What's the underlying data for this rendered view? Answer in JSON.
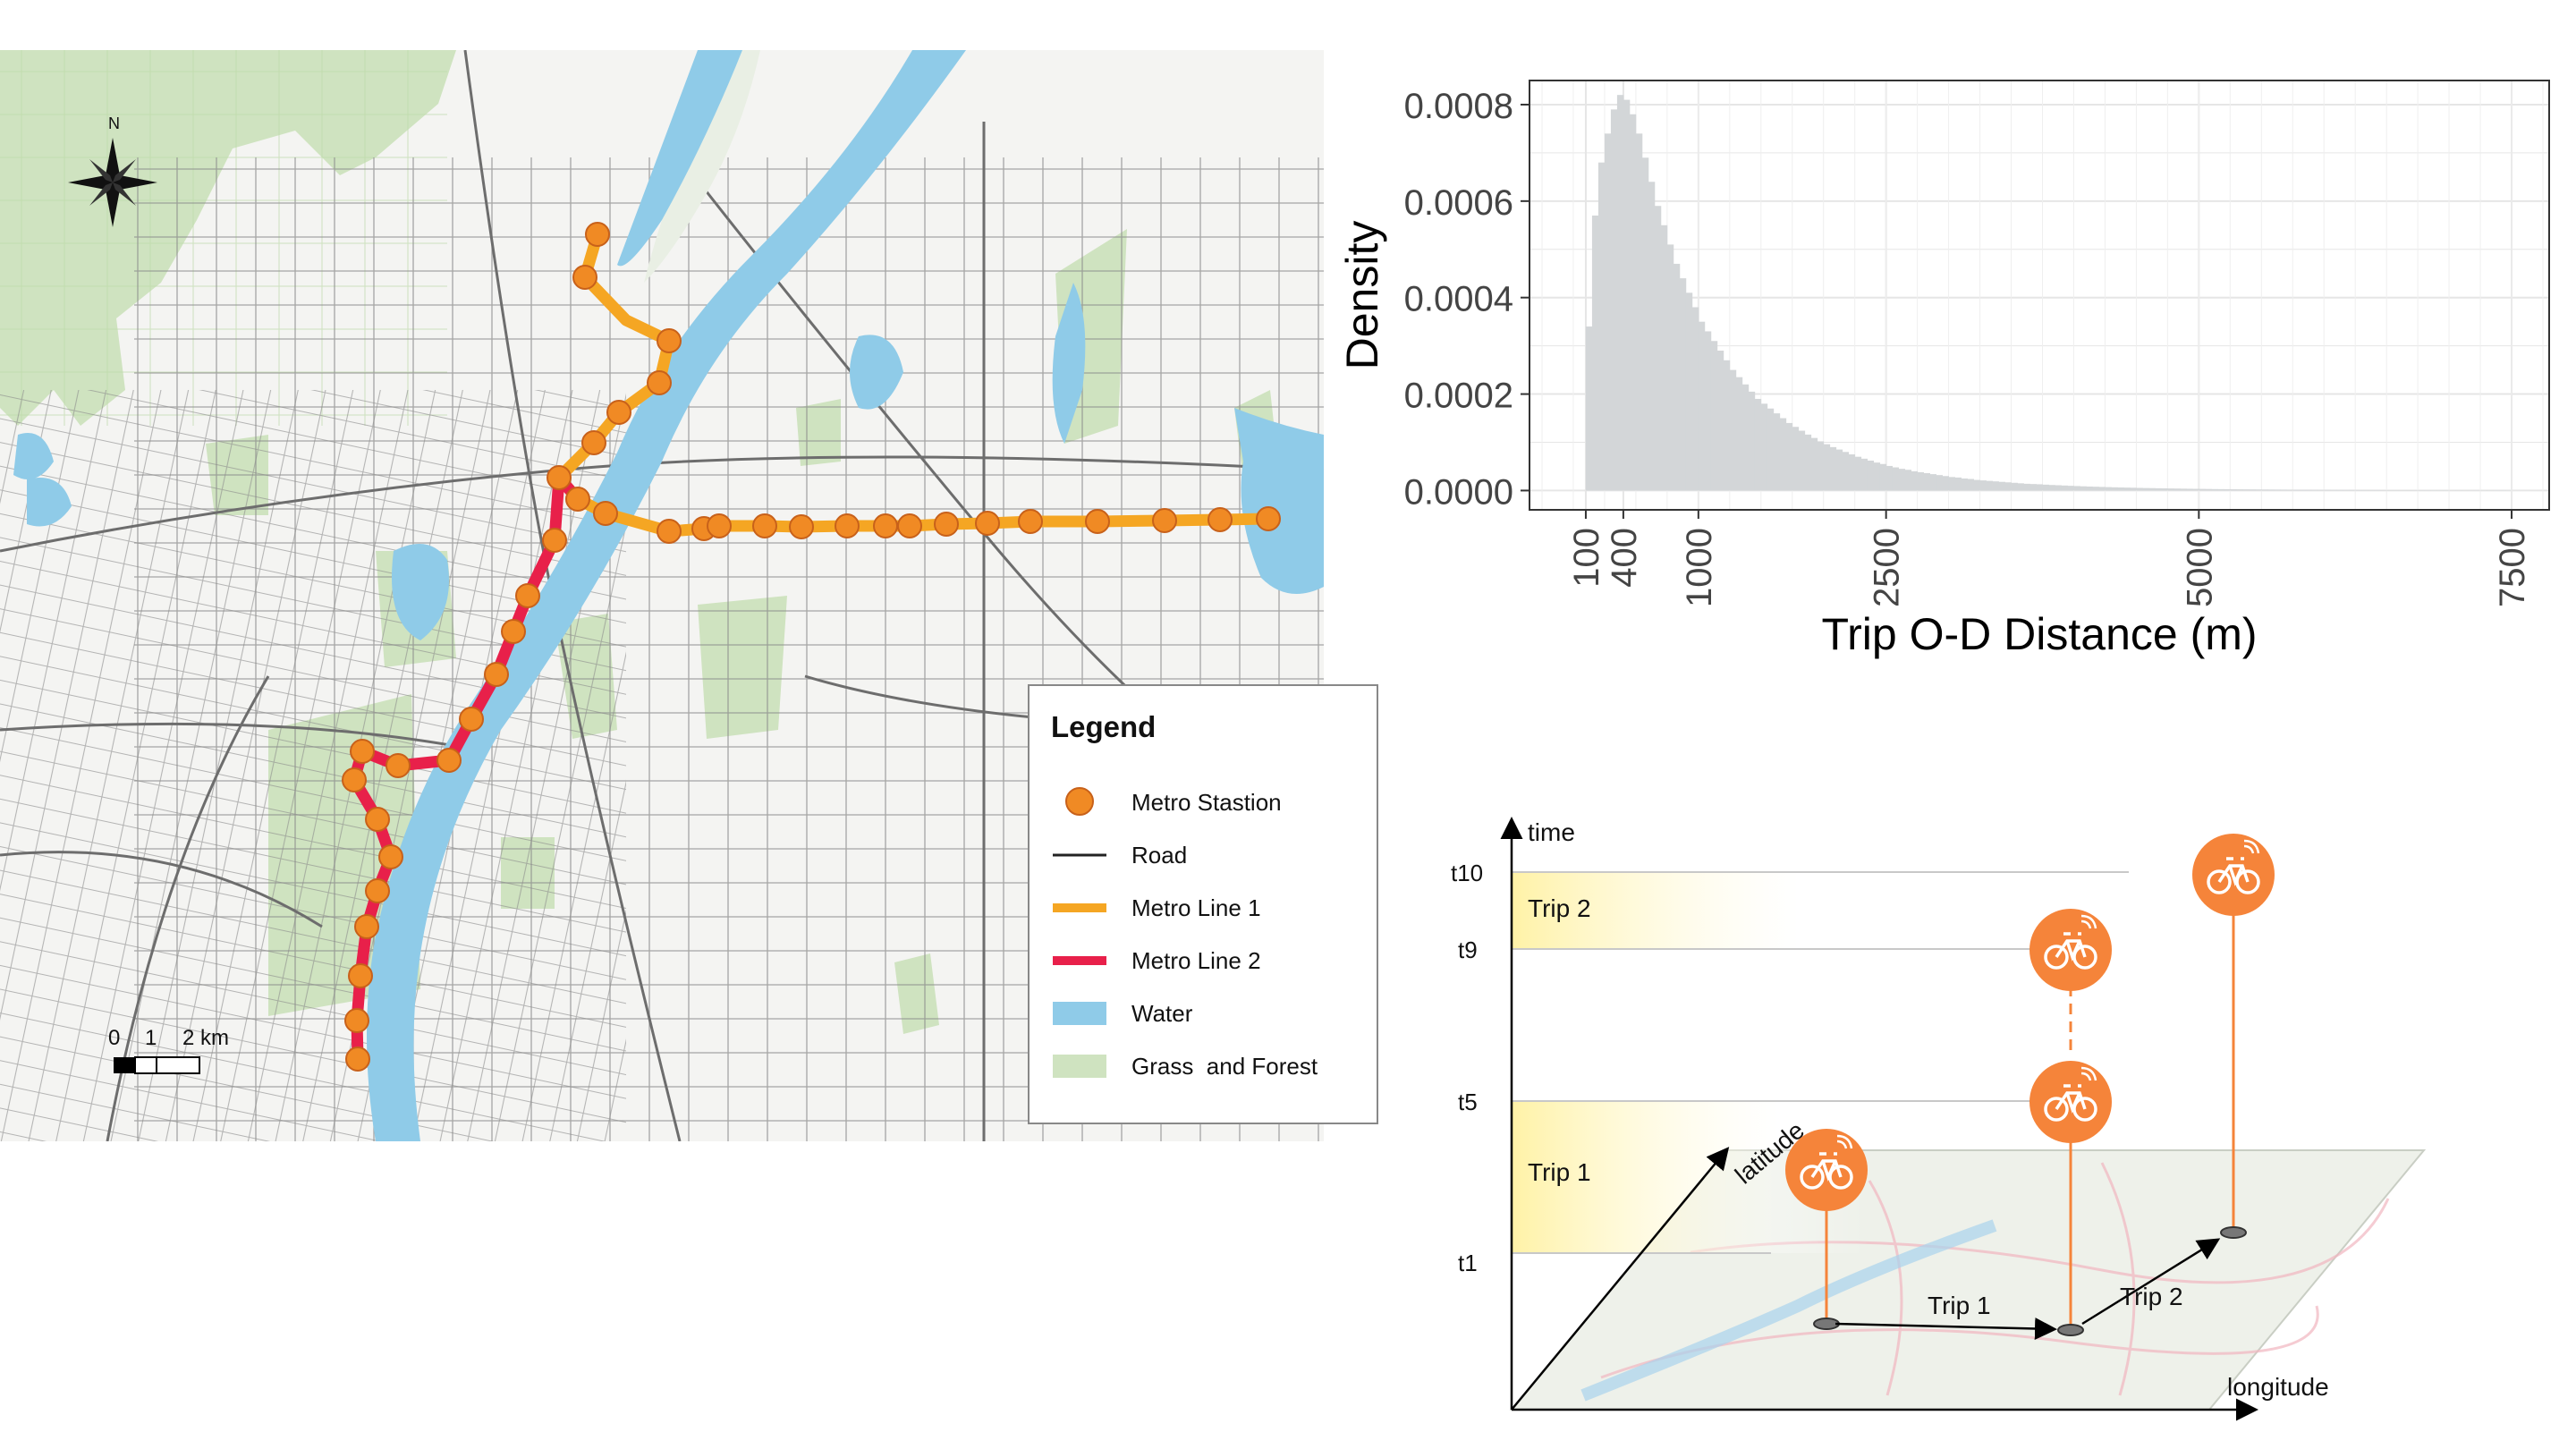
{
  "map": {
    "north_label": "N",
    "scale": {
      "labels": [
        "0",
        "1",
        "2 km"
      ]
    },
    "legend": {
      "title": "Legend",
      "items": [
        {
          "label": "Metro Stastion",
          "kind": "circle",
          "color": "#f08a24"
        },
        {
          "label": "Road",
          "kind": "line",
          "color": "#222222"
        },
        {
          "label": "Metro Line 1",
          "kind": "thick-line",
          "color": "#f5a623"
        },
        {
          "label": "Metro Line 2",
          "kind": "thick-line",
          "color": "#e8204a"
        },
        {
          "label": "Water",
          "kind": "box",
          "color": "#8fcbe8"
        },
        {
          "label": "Grass  and Forest",
          "kind": "box",
          "color": "#cfe3c0"
        }
      ]
    },
    "colors": {
      "water": "#8fcbe8",
      "grass": "#cfe3c0",
      "road": "#7a7a7a",
      "line1": "#f5a623",
      "line2": "#e8204a",
      "station": "#f08a24"
    }
  },
  "chart_data": {
    "type": "histogram",
    "xlabel": "Trip O-D Distance (m)",
    "ylabel": "Density",
    "xlim": [
      -350,
      7800
    ],
    "ylim": [
      -4e-05,
      0.00085
    ],
    "x_ticks": [
      100,
      400,
      1000,
      2500,
      5000,
      7500
    ],
    "x_tick_labels": [
      "100",
      "400",
      "1000",
      "2500",
      "5000",
      "7500"
    ],
    "y_ticks": [
      0,
      0.0002,
      0.0004,
      0.0006,
      0.0008
    ],
    "y_tick_labels": [
      "0.0000",
      "0.0002",
      "0.0004",
      "0.0006",
      "0.0008"
    ],
    "bin_start": 100,
    "bin_width": 50,
    "densities": [
      0.00034,
      0.00057,
      0.00068,
      0.00074,
      0.00079,
      0.00082,
      0.00081,
      0.00078,
      0.00074,
      0.00069,
      0.00064,
      0.00059,
      0.00055,
      0.00051,
      0.00047,
      0.00044,
      0.00041,
      0.00038,
      0.00035,
      0.00033,
      0.00031,
      0.00029,
      0.00027,
      0.00025,
      0.000235,
      0.00022,
      0.000205,
      0.00019,
      0.00018,
      0.00017,
      0.00016,
      0.00015,
      0.00014,
      0.000132,
      0.000124,
      0.000116,
      0.000109,
      0.000102,
      9.6e-05,
      9e-05,
      8.5e-05,
      8e-05,
      7.5e-05,
      7e-05,
      6.6e-05,
      6.2e-05,
      5.8e-05,
      5.5e-05,
      5.1e-05,
      4.8e-05,
      4.5e-05,
      4.3e-05,
      4e-05,
      3.8e-05,
      3.6e-05,
      3.4e-05,
      3.2e-05,
      3e-05,
      2.8e-05,
      2.7e-05,
      2.5e-05,
      2.4e-05,
      2.2e-05,
      2.1e-05,
      2e-05,
      1.9e-05,
      1.8e-05,
      1.7e-05,
      1.6e-05,
      1.5e-05,
      1.4e-05,
      1.35e-05,
      1.3e-05,
      1.22e-05,
      1.15e-05,
      1.1e-05,
      1.04e-05,
      9.8e-06,
      9.3e-06,
      8.8e-06,
      8.3e-06,
      7.9e-06,
      7.5e-06,
      7.1e-06,
      6.7e-06,
      6.4e-06,
      6.1e-06,
      5.8e-06,
      5.5e-06,
      5.2e-06,
      5e-06,
      4.7e-06,
      4.5e-06,
      4.3e-06,
      4.1e-06,
      3.9e-06,
      3.7e-06,
      3.5e-06,
      3.4e-06,
      3.2e-06,
      3e-06,
      2.9e-06,
      2.8e-06,
      2.6e-06,
      2.5e-06,
      2.4e-06,
      2.3e-06,
      2.2e-06,
      2.1e-06,
      2e-06,
      1.9e-06,
      1.8e-06,
      1.7e-06,
      1.6e-06,
      1.5e-06,
      1.5e-06,
      1.4e-06,
      1.3e-06,
      1.3e-06,
      1.2e-06,
      1.2e-06,
      1.1e-06,
      1.1e-06,
      1e-06,
      1e-06,
      9.5e-07,
      9e-07,
      8.5e-07,
      8e-07,
      7.6e-07,
      7.2e-07,
      6.8e-07,
      6.5e-07,
      6.1e-07,
      5.8e-07,
      5.5e-07,
      5.2e-07,
      5e-07,
      4.7e-07,
      4.5e-07,
      4.3e-07,
      4.1e-07,
      3.9e-07,
      3.7e-07,
      3.5e-07,
      3.3e-07,
      3.1e-07,
      3e-07
    ],
    "bar_color": "#d3d6d8",
    "grid": true
  },
  "diagram": {
    "axis_time": "time",
    "axis_latitude": "latitude",
    "axis_longitude": "longitude",
    "times": [
      "t10",
      "t9",
      "t5",
      "t1"
    ],
    "trip_bands": [
      "Trip 2",
      "Trip 1"
    ],
    "trip_arrows": [
      "Trip 1",
      "Trip 2"
    ],
    "colors": {
      "marker": "#f5843a",
      "band": "#fff4b8",
      "stem": "#f5843a"
    }
  }
}
